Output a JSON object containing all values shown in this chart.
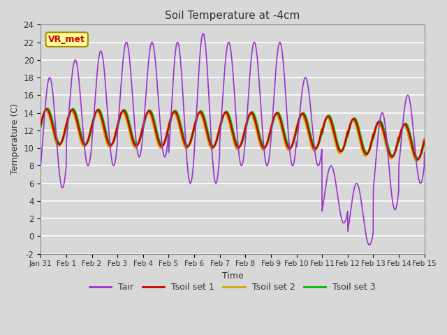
{
  "title": "Soil Temperature at -4cm",
  "xlabel": "Time",
  "ylabel": "Temperature (C)",
  "ylim": [
    -2,
    24
  ],
  "xlim": [
    0,
    15
  ],
  "xtick_labels": [
    "Jan 31",
    "Feb 1",
    "Feb 2",
    "Feb 3",
    "Feb 4",
    "Feb 5",
    "Feb 6",
    "Feb 7",
    "Feb 8",
    "Feb 9",
    "Feb 10",
    "Feb 11",
    "Feb 12",
    "Feb 13",
    "Feb 14",
    "Feb 15"
  ],
  "ytick_values": [
    -2,
    0,
    2,
    4,
    6,
    8,
    10,
    12,
    14,
    16,
    18,
    20,
    22,
    24
  ],
  "bg_color": "#d8d8d8",
  "plot_bg_color": "#d8d8d8",
  "grid_color": "#ffffff",
  "line_colors": {
    "Tair": "#9933cc",
    "Tsoil1": "#cc0000",
    "Tsoil2": "#ccaa00",
    "Tsoil3": "#00bb00"
  },
  "legend_label_color": "#333333",
  "title_color": "#333333",
  "annotation_text": "VR_met",
  "annotation_color": "#cc0000",
  "annotation_bg": "#ffff99",
  "annotation_border": "#aa8800"
}
